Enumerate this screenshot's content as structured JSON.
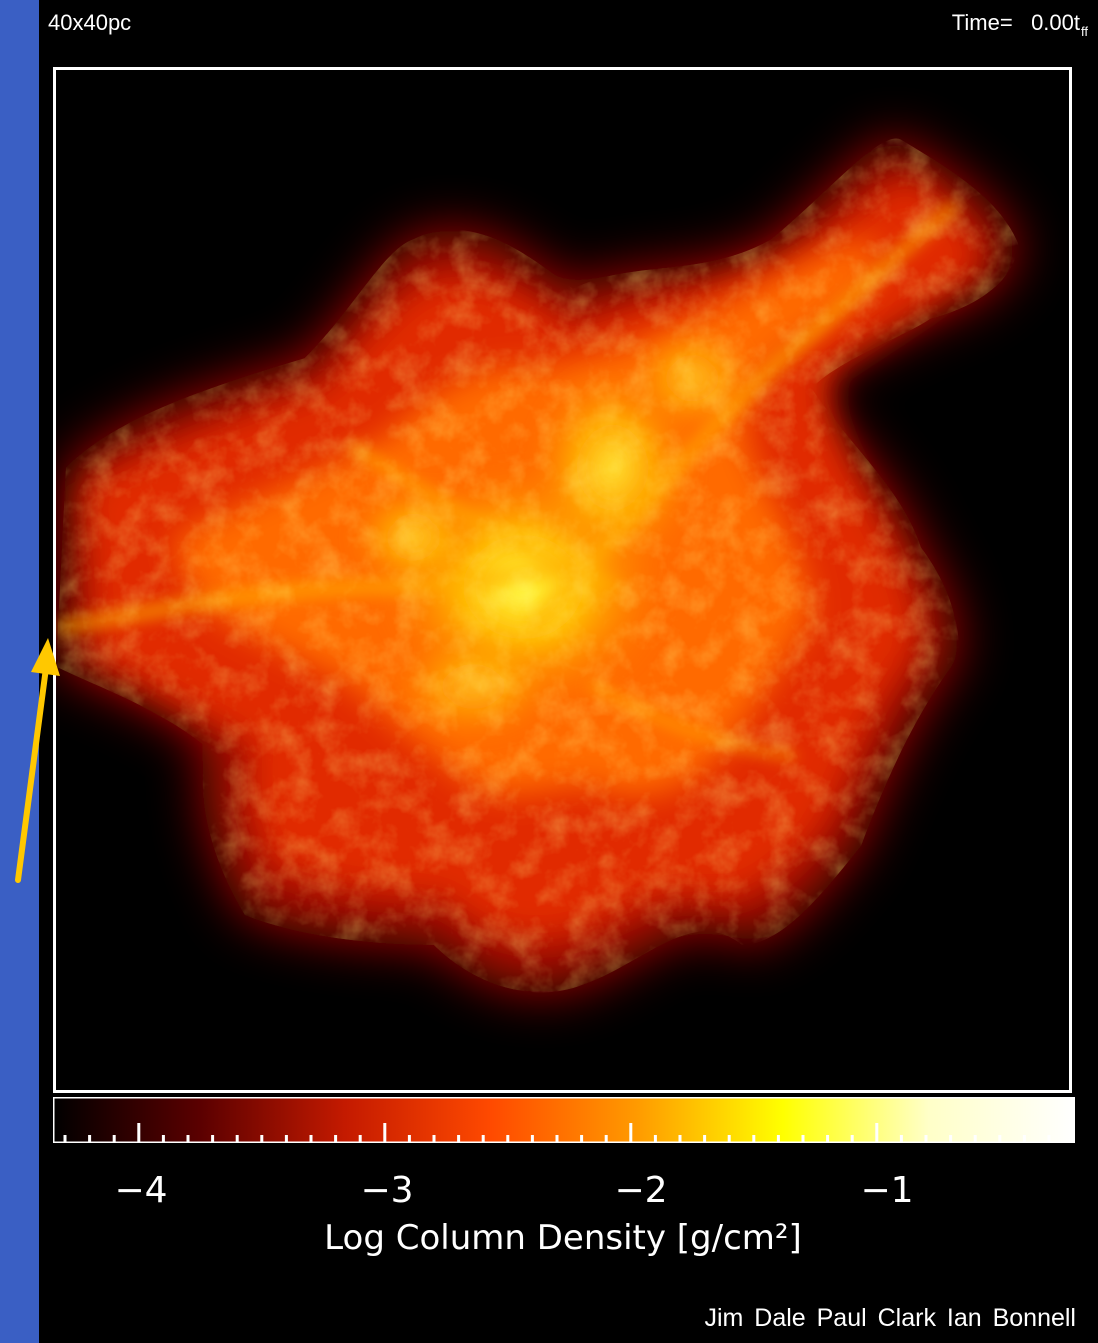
{
  "header": {
    "scale": "40x40pc",
    "time_prefix": "Time=",
    "time_value": "0.00t",
    "time_unit_sub": "ff"
  },
  "colorbar": {
    "ticks": [
      "−4",
      "−3",
      "−2",
      "−1"
    ],
    "title": "Log Column Density [g/cm²]",
    "colors": [
      "#000000",
      "#5a0000",
      "#c41a00",
      "#ff4a00",
      "#ff9a00",
      "#ffff00",
      "#ffffc8",
      "#ffffff"
    ]
  },
  "credits": "Jim Dale   Paul Clark   Ian Bonnell",
  "colors": {
    "background": "#3a5fc4",
    "arrow": "#ffc800"
  }
}
